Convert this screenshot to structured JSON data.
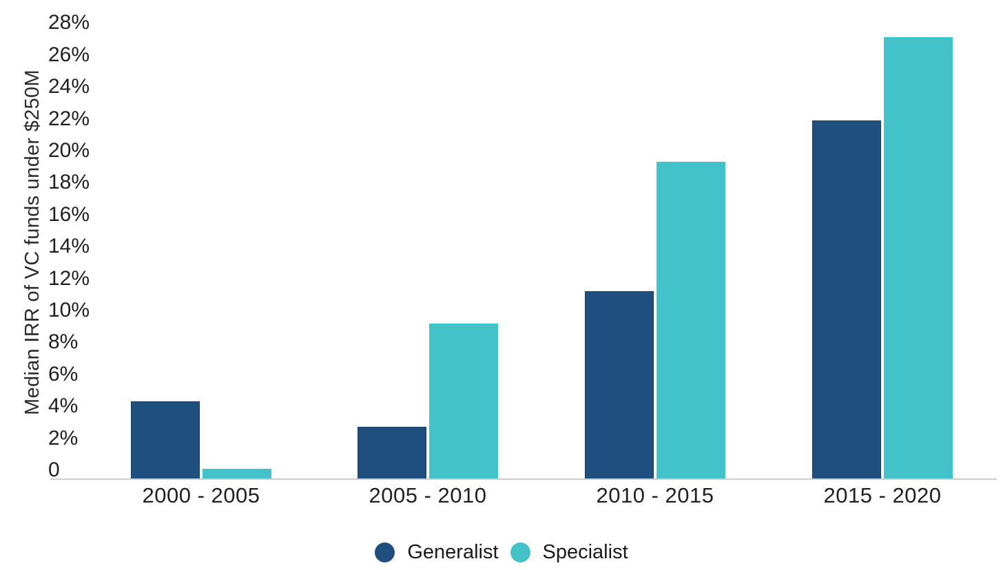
{
  "chart_data": {
    "type": "bar",
    "title": "",
    "xlabel": "",
    "ylabel": "Median IRR of VC funds under $250M",
    "categories": [
      "2000 - 2005",
      "2005 - 2010",
      "2010 - 2015",
      "2015 - 2020"
    ],
    "series": [
      {
        "name": "Generalist",
        "color": "#1F4F7E",
        "border_color": "#173E61",
        "values": [
          4.9,
          3.3,
          11.8,
          22.5
        ]
      },
      {
        "name": "Specialist",
        "color": "#44C2CA",
        "border_color": "#35CBD3",
        "values": [
          0.7,
          9.8,
          19.9,
          27.7
        ]
      }
    ],
    "y_ticks": [
      {
        "v": 0,
        "label": "0"
      },
      {
        "v": 2,
        "label": "2%"
      },
      {
        "v": 4,
        "label": "4%"
      },
      {
        "v": 6,
        "label": "6%"
      },
      {
        "v": 8,
        "label": "8%"
      },
      {
        "v": 10,
        "label": "10%"
      },
      {
        "v": 12,
        "label": "12%"
      },
      {
        "v": 14,
        "label": "14%"
      },
      {
        "v": 16,
        "label": "16%"
      },
      {
        "v": 18,
        "label": "18%"
      },
      {
        "v": 20,
        "label": "20%"
      },
      {
        "v": 22,
        "label": "22%"
      },
      {
        "v": 24,
        "label": "24%"
      },
      {
        "v": 26,
        "label": "26%"
      },
      {
        "v": 28,
        "label": "28%"
      }
    ],
    "ylim": [
      0,
      28
    ],
    "grid": false,
    "legend_position": "bottom",
    "background_color": "#FFFFFF",
    "axis_line_color": "#CCCCCC",
    "text_color": "#1F1F1F"
  }
}
